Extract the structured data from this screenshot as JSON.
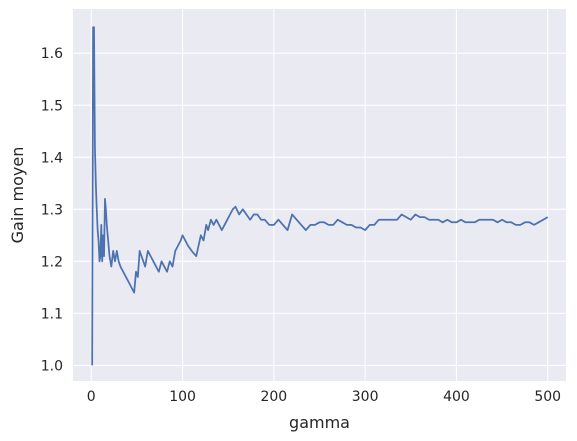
{
  "chart_data": {
    "type": "line",
    "title": "",
    "xlabel": "gamma",
    "ylabel": "Gain moyen",
    "xlim": [
      -20,
      520
    ],
    "ylim": [
      0.97,
      1.685
    ],
    "xticks": [
      0,
      100,
      200,
      300,
      400,
      500
    ],
    "yticks": [
      1.0,
      1.1,
      1.2,
      1.3,
      1.4,
      1.5,
      1.6
    ],
    "ytick_labels": [
      "1.0",
      "1.1",
      "1.2",
      "1.3",
      "1.4",
      "1.5",
      "1.6"
    ],
    "grid": true,
    "colors": {
      "background": "#eaeaf2",
      "grid": "#ffffff",
      "line": "#4c72b0"
    },
    "series": [
      {
        "x": [
          1,
          2,
          3,
          4,
          5,
          6,
          7,
          8,
          9,
          10,
          11,
          12,
          13,
          14,
          15,
          16,
          17,
          18,
          19,
          20,
          22,
          24,
          26,
          28,
          30,
          32,
          35,
          38,
          41,
          44,
          47,
          49,
          51,
          53,
          55,
          57,
          59,
          62,
          65,
          68,
          71,
          74,
          77,
          80,
          83,
          86,
          89,
          92,
          95,
          98,
          100,
          103,
          106,
          110,
          115,
          120,
          123,
          126,
          128,
          131,
          134,
          137,
          140,
          143,
          146,
          149,
          152,
          155,
          158,
          162,
          166,
          170,
          174,
          178,
          182,
          186,
          190,
          195,
          200,
          205,
          210,
          215,
          220,
          225,
          230,
          235,
          240,
          245,
          250,
          255,
          260,
          265,
          270,
          275,
          280,
          285,
          290,
          295,
          300,
          305,
          310,
          315,
          320,
          325,
          330,
          335,
          340,
          345,
          350,
          355,
          360,
          365,
          370,
          375,
          380,
          385,
          390,
          395,
          400,
          405,
          410,
          415,
          420,
          425,
          430,
          435,
          440,
          445,
          450,
          455,
          460,
          465,
          470,
          475,
          480,
          485,
          490,
          495,
          500
        ],
        "y": [
          1.0,
          1.65,
          1.65,
          1.42,
          1.35,
          1.3,
          1.26,
          1.24,
          1.2,
          1.21,
          1.27,
          1.2,
          1.25,
          1.21,
          1.32,
          1.3,
          1.27,
          1.25,
          1.23,
          1.21,
          1.19,
          1.22,
          1.2,
          1.22,
          1.2,
          1.19,
          1.18,
          1.17,
          1.16,
          1.15,
          1.14,
          1.18,
          1.17,
          1.22,
          1.21,
          1.2,
          1.19,
          1.22,
          1.21,
          1.2,
          1.19,
          1.18,
          1.2,
          1.19,
          1.18,
          1.2,
          1.19,
          1.22,
          1.23,
          1.24,
          1.25,
          1.24,
          1.23,
          1.22,
          1.21,
          1.25,
          1.24,
          1.27,
          1.26,
          1.28,
          1.27,
          1.28,
          1.27,
          1.26,
          1.27,
          1.28,
          1.29,
          1.3,
          1.305,
          1.29,
          1.3,
          1.29,
          1.28,
          1.29,
          1.29,
          1.28,
          1.28,
          1.27,
          1.27,
          1.28,
          1.27,
          1.26,
          1.29,
          1.28,
          1.27,
          1.26,
          1.27,
          1.27,
          1.275,
          1.275,
          1.27,
          1.27,
          1.28,
          1.275,
          1.27,
          1.27,
          1.265,
          1.265,
          1.26,
          1.27,
          1.27,
          1.28,
          1.28,
          1.28,
          1.28,
          1.28,
          1.29,
          1.285,
          1.28,
          1.29,
          1.285,
          1.285,
          1.28,
          1.28,
          1.28,
          1.275,
          1.28,
          1.275,
          1.275,
          1.28,
          1.275,
          1.275,
          1.275,
          1.28,
          1.28,
          1.28,
          1.28,
          1.275,
          1.28,
          1.275,
          1.275,
          1.27,
          1.27,
          1.275,
          1.275,
          1.27,
          1.275,
          1.28,
          1.285
        ]
      }
    ]
  }
}
